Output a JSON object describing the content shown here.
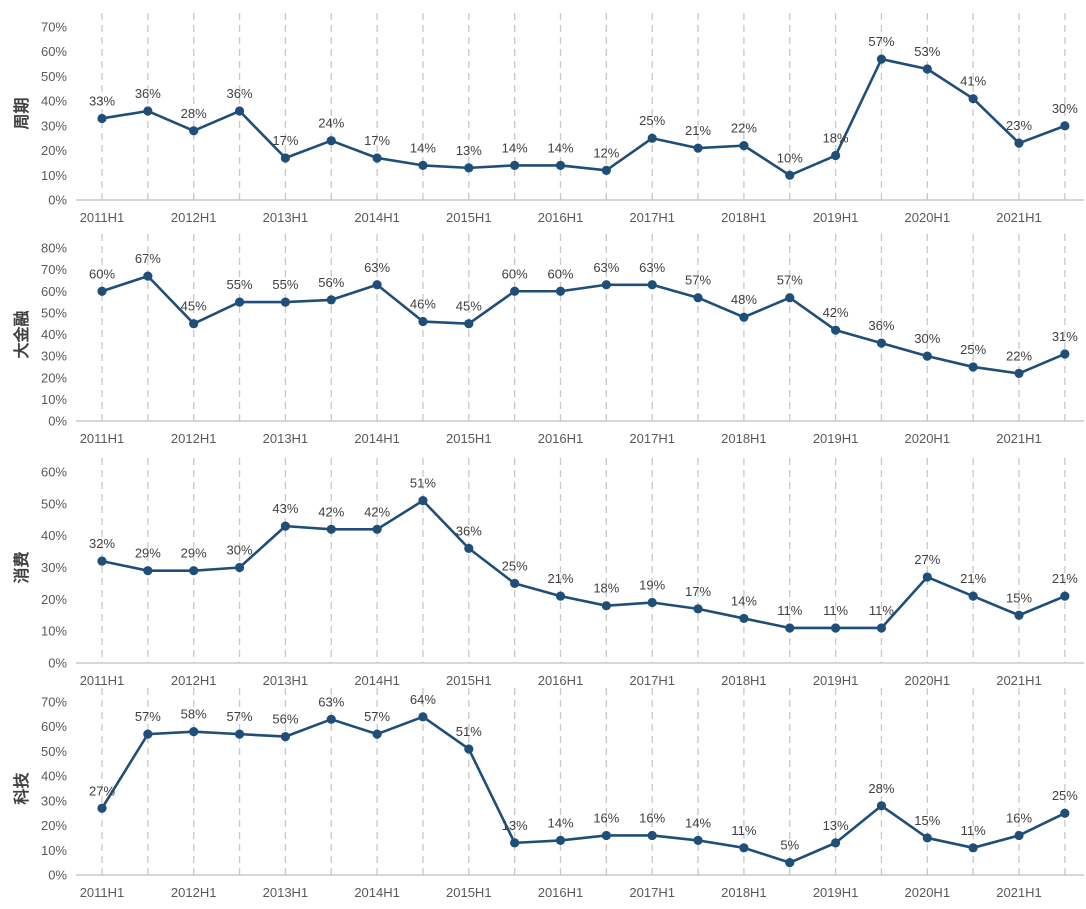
{
  "chart_data": [
    {
      "type": "line",
      "ylabel": "周期",
      "ylim": [
        0,
        70
      ],
      "yticks": [
        "0%",
        "10%",
        "20%",
        "30%",
        "40%",
        "50%",
        "60%",
        "70%"
      ],
      "xticks": [
        "2011H1",
        "2012H1",
        "2013H1",
        "2014H1",
        "2015H1",
        "2016H1",
        "2017H1",
        "2018H1",
        "2019H1",
        "2020H1",
        "2021H1"
      ],
      "values": [
        33,
        36,
        28,
        36,
        17,
        24,
        17,
        14,
        13,
        14,
        14,
        12,
        25,
        21,
        22,
        10,
        18,
        57,
        53,
        41,
        23,
        30
      ],
      "labels": [
        "33%",
        "36%",
        "28%",
        "36%",
        "17%",
        "24%",
        "17%",
        "14%",
        "13%",
        "14%",
        "14%",
        "12%",
        "25%",
        "21%",
        "22%",
        "10%",
        "18%",
        "57%",
        "53%",
        "41%",
        "23%",
        "30%"
      ]
    },
    {
      "type": "line",
      "ylabel": "大金融",
      "ylim": [
        0,
        80
      ],
      "yticks": [
        "0%",
        "10%",
        "20%",
        "30%",
        "40%",
        "50%",
        "60%",
        "70%",
        "80%"
      ],
      "xticks": [
        "2011H1",
        "2012H1",
        "2013H1",
        "2014H1",
        "2015H1",
        "2016H1",
        "2017H1",
        "2018H1",
        "2019H1",
        "2020H1",
        "2021H1"
      ],
      "values": [
        60,
        67,
        45,
        55,
        55,
        56,
        63,
        46,
        45,
        60,
        60,
        63,
        63,
        57,
        48,
        57,
        42,
        36,
        30,
        25,
        22,
        31
      ],
      "labels": [
        "60%",
        "67%",
        "45%",
        "55%",
        "55%",
        "56%",
        "63%",
        "46%",
        "45%",
        "60%",
        "60%",
        "63%",
        "63%",
        "57%",
        "48%",
        "57%",
        "42%",
        "36%",
        "30%",
        "25%",
        "22%",
        "31%"
      ]
    },
    {
      "type": "line",
      "ylabel": "消费",
      "ylim": [
        0,
        60
      ],
      "yticks": [
        "0%",
        "10%",
        "20%",
        "30%",
        "40%",
        "50%",
        "60%"
      ],
      "xticks": [
        "2011H1",
        "2012H1",
        "2013H1",
        "2014H1",
        "2015H1",
        "2016H1",
        "2017H1",
        "2018H1",
        "2019H1",
        "2020H1",
        "2021H1"
      ],
      "values": [
        32,
        29,
        29,
        30,
        43,
        42,
        42,
        51,
        36,
        25,
        21,
        18,
        19,
        17,
        14,
        11,
        11,
        11,
        27,
        21,
        15,
        21
      ],
      "labels": [
        "32%",
        "29%",
        "29%",
        "30%",
        "43%",
        "42%",
        "42%",
        "51%",
        "36%",
        "25%",
        "21%",
        "18%",
        "19%",
        "17%",
        "14%",
        "11%",
        "11%",
        "11%",
        "27%",
        "21%",
        "15%",
        "21%"
      ]
    },
    {
      "type": "line",
      "ylabel": "科技",
      "ylim": [
        0,
        70
      ],
      "yticks": [
        "0%",
        "10%",
        "20%",
        "30%",
        "40%",
        "50%",
        "60%",
        "70%"
      ],
      "xticks": [
        "2011H1",
        "2012H1",
        "2013H1",
        "2014H1",
        "2015H1",
        "2016H1",
        "2017H1",
        "2018H1",
        "2019H1",
        "2020H1",
        "2021H1"
      ],
      "values": [
        27,
        57,
        58,
        57,
        56,
        63,
        57,
        64,
        51,
        13,
        14,
        16,
        16,
        14,
        11,
        5,
        13,
        28,
        15,
        11,
        16,
        25
      ],
      "labels": [
        "27%",
        "57%",
        "58%",
        "57%",
        "56%",
        "63%",
        "57%",
        "64%",
        "51%",
        "13%",
        "14%",
        "16%",
        "16%",
        "14%",
        "11%",
        "5%",
        "13%",
        "28%",
        "15%",
        "11%",
        "16%",
        "25%"
      ]
    }
  ],
  "colors": {
    "series": "#1f4e79",
    "grid": "#c8c8c8",
    "axis": "#bfbfbf",
    "text": "#595959"
  }
}
